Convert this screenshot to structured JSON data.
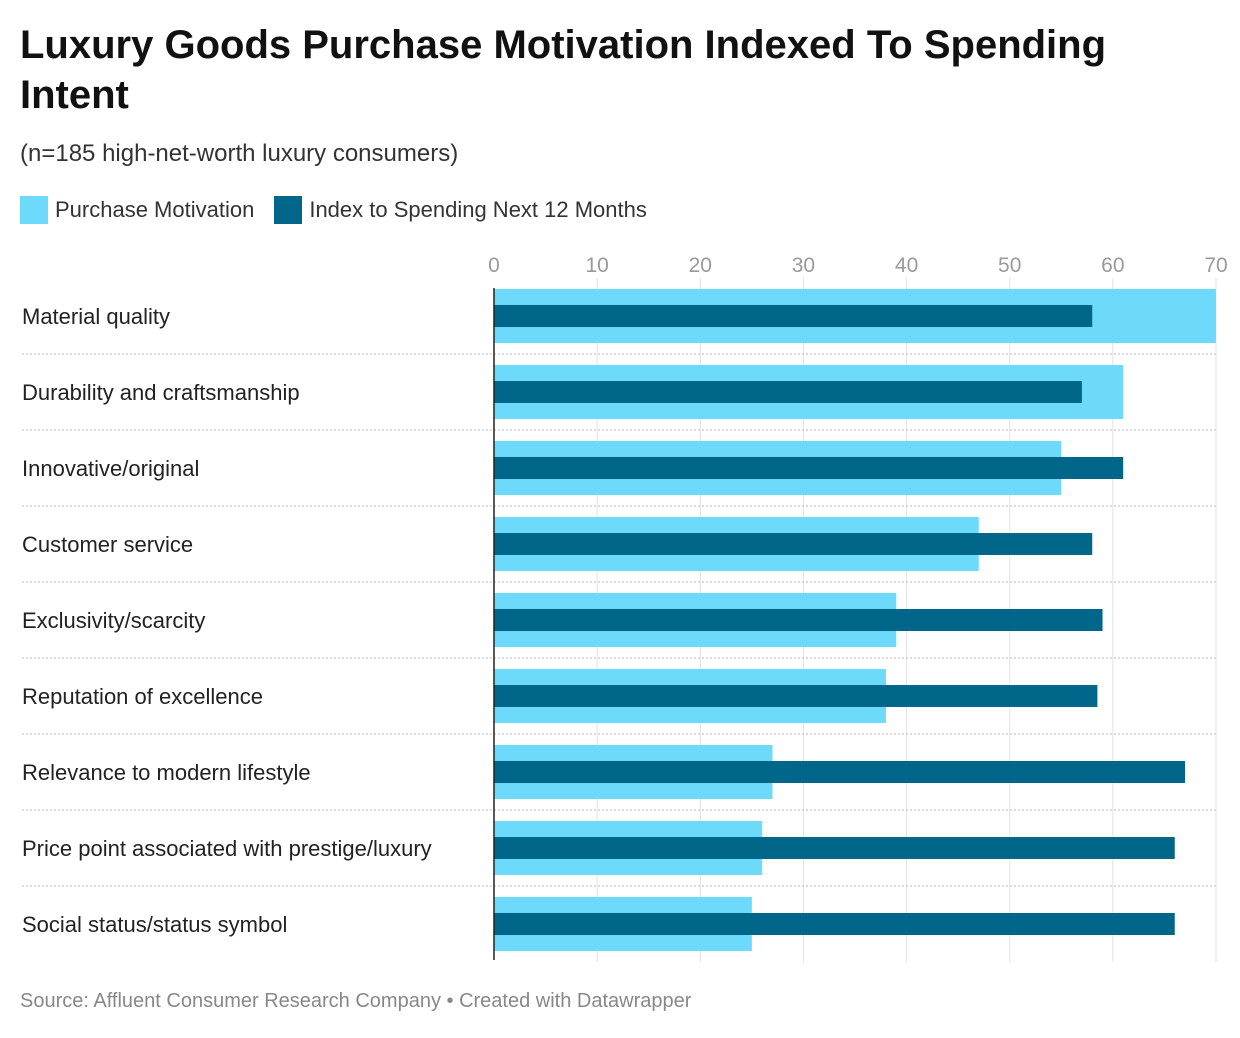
{
  "title": "Luxury Goods Purchase Motivation Indexed To Spending Intent",
  "subtitle": "(n=185 high-net-worth luxury consumers)",
  "footer": "Source: Affluent Consumer Research Company • Created with Datawrapper",
  "chart_data": {
    "type": "bar",
    "orientation": "horizontal",
    "title": "Luxury Goods Purchase Motivation Indexed To Spending Intent",
    "subtitle": "(n=185 high-net-worth luxury consumers)",
    "categories": [
      "Material quality",
      "Durability and craftsmanship",
      "Innovative/original",
      "Customer service",
      "Exclusivity/scarcity",
      "Reputation of excellence",
      "Relevance to modern lifestyle",
      "Price point associated with prestige/luxury",
      "Social status/status symbol"
    ],
    "series": [
      {
        "name": "Purchase Motivation",
        "color": "#6dd9fb",
        "values": [
          70,
          61,
          55,
          47,
          39,
          38,
          27,
          26,
          25
        ]
      },
      {
        "name": "Index to Spending Next 12 Months",
        "color": "#00678a",
        "values": [
          58,
          57,
          61,
          58,
          59,
          58.5,
          67,
          66,
          66
        ]
      }
    ],
    "xlim": [
      0,
      70
    ],
    "xticks": [
      0,
      10,
      20,
      30,
      40,
      50,
      60,
      70
    ],
    "grid": true,
    "legend": "top-left"
  }
}
